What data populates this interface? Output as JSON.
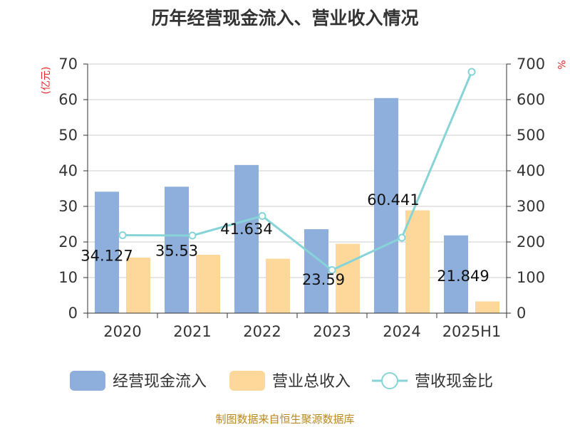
{
  "title": "历年经营现金流入、营业收入情况",
  "source": "制图数据来自恒生聚源数据库",
  "chart_data": {
    "type": "bar",
    "categories": [
      "2020",
      "2021",
      "2022",
      "2023",
      "2024",
      "2025H1"
    ],
    "y_left": {
      "unit": "(亿元)",
      "ylim": [
        0,
        70
      ],
      "ticks": [
        0,
        10,
        20,
        30,
        40,
        50,
        60,
        70
      ]
    },
    "y_right": {
      "unit": "%",
      "ylim": [
        0,
        700
      ],
      "ticks": [
        0,
        100,
        200,
        300,
        400,
        500,
        600,
        700
      ]
    },
    "series": [
      {
        "name": "经营现金流入",
        "type": "bar",
        "axis": "left",
        "color": "#8eaedb",
        "values": [
          34.127,
          35.53,
          41.634,
          23.59,
          60.441,
          21.849
        ],
        "labels": [
          "34.127",
          "35.53",
          "41.634",
          "23.59",
          "60.441",
          "21.849"
        ]
      },
      {
        "name": "营业总收入",
        "type": "bar",
        "axis": "left",
        "color": "#fdd89a",
        "values": [
          15.6,
          16.4,
          15.3,
          19.5,
          28.9,
          3.3
        ]
      },
      {
        "name": "营收现金比",
        "type": "line",
        "axis": "right",
        "color": "#86d4d8",
        "values": [
          219,
          218,
          273,
          121,
          212,
          678
        ]
      }
    ],
    "grid": true,
    "legend_position": "bottom"
  }
}
